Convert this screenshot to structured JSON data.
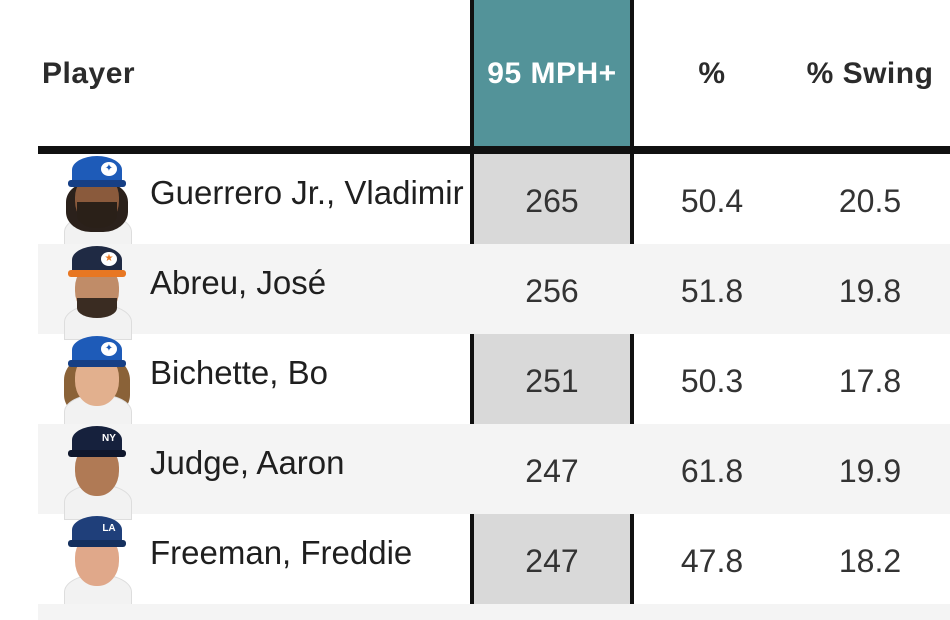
{
  "colors": {
    "highlight_header": "#539399",
    "highlight_column": "#d9d9d9",
    "rule": "#111111",
    "alt_row": "#f4f4f4"
  },
  "table": {
    "headers": {
      "player": "Player",
      "mph95": "95 MPH+",
      "pct": "%",
      "swing": "% Swing"
    },
    "rows": [
      {
        "name": "Guerrero Jr., Vladimir",
        "mph95": "265",
        "pct": "50.4",
        "swing": "20.5",
        "team_cap": "blue-jays-cap-icon"
      },
      {
        "name": "Abreu, José",
        "mph95": "256",
        "pct": "51.8",
        "swing": "19.8",
        "team_cap": "astros-cap-icon"
      },
      {
        "name": "Bichette, Bo",
        "mph95": "251",
        "pct": "50.3",
        "swing": "17.8",
        "team_cap": "blue-jays-cap-icon"
      },
      {
        "name": "Judge, Aaron",
        "mph95": "247",
        "pct": "61.8",
        "swing": "19.9",
        "team_cap": "yankees-cap-icon"
      },
      {
        "name": "Freeman, Freddie",
        "mph95": "247",
        "pct": "47.8",
        "swing": "18.2",
        "team_cap": "dodgers-cap-icon"
      }
    ]
  }
}
